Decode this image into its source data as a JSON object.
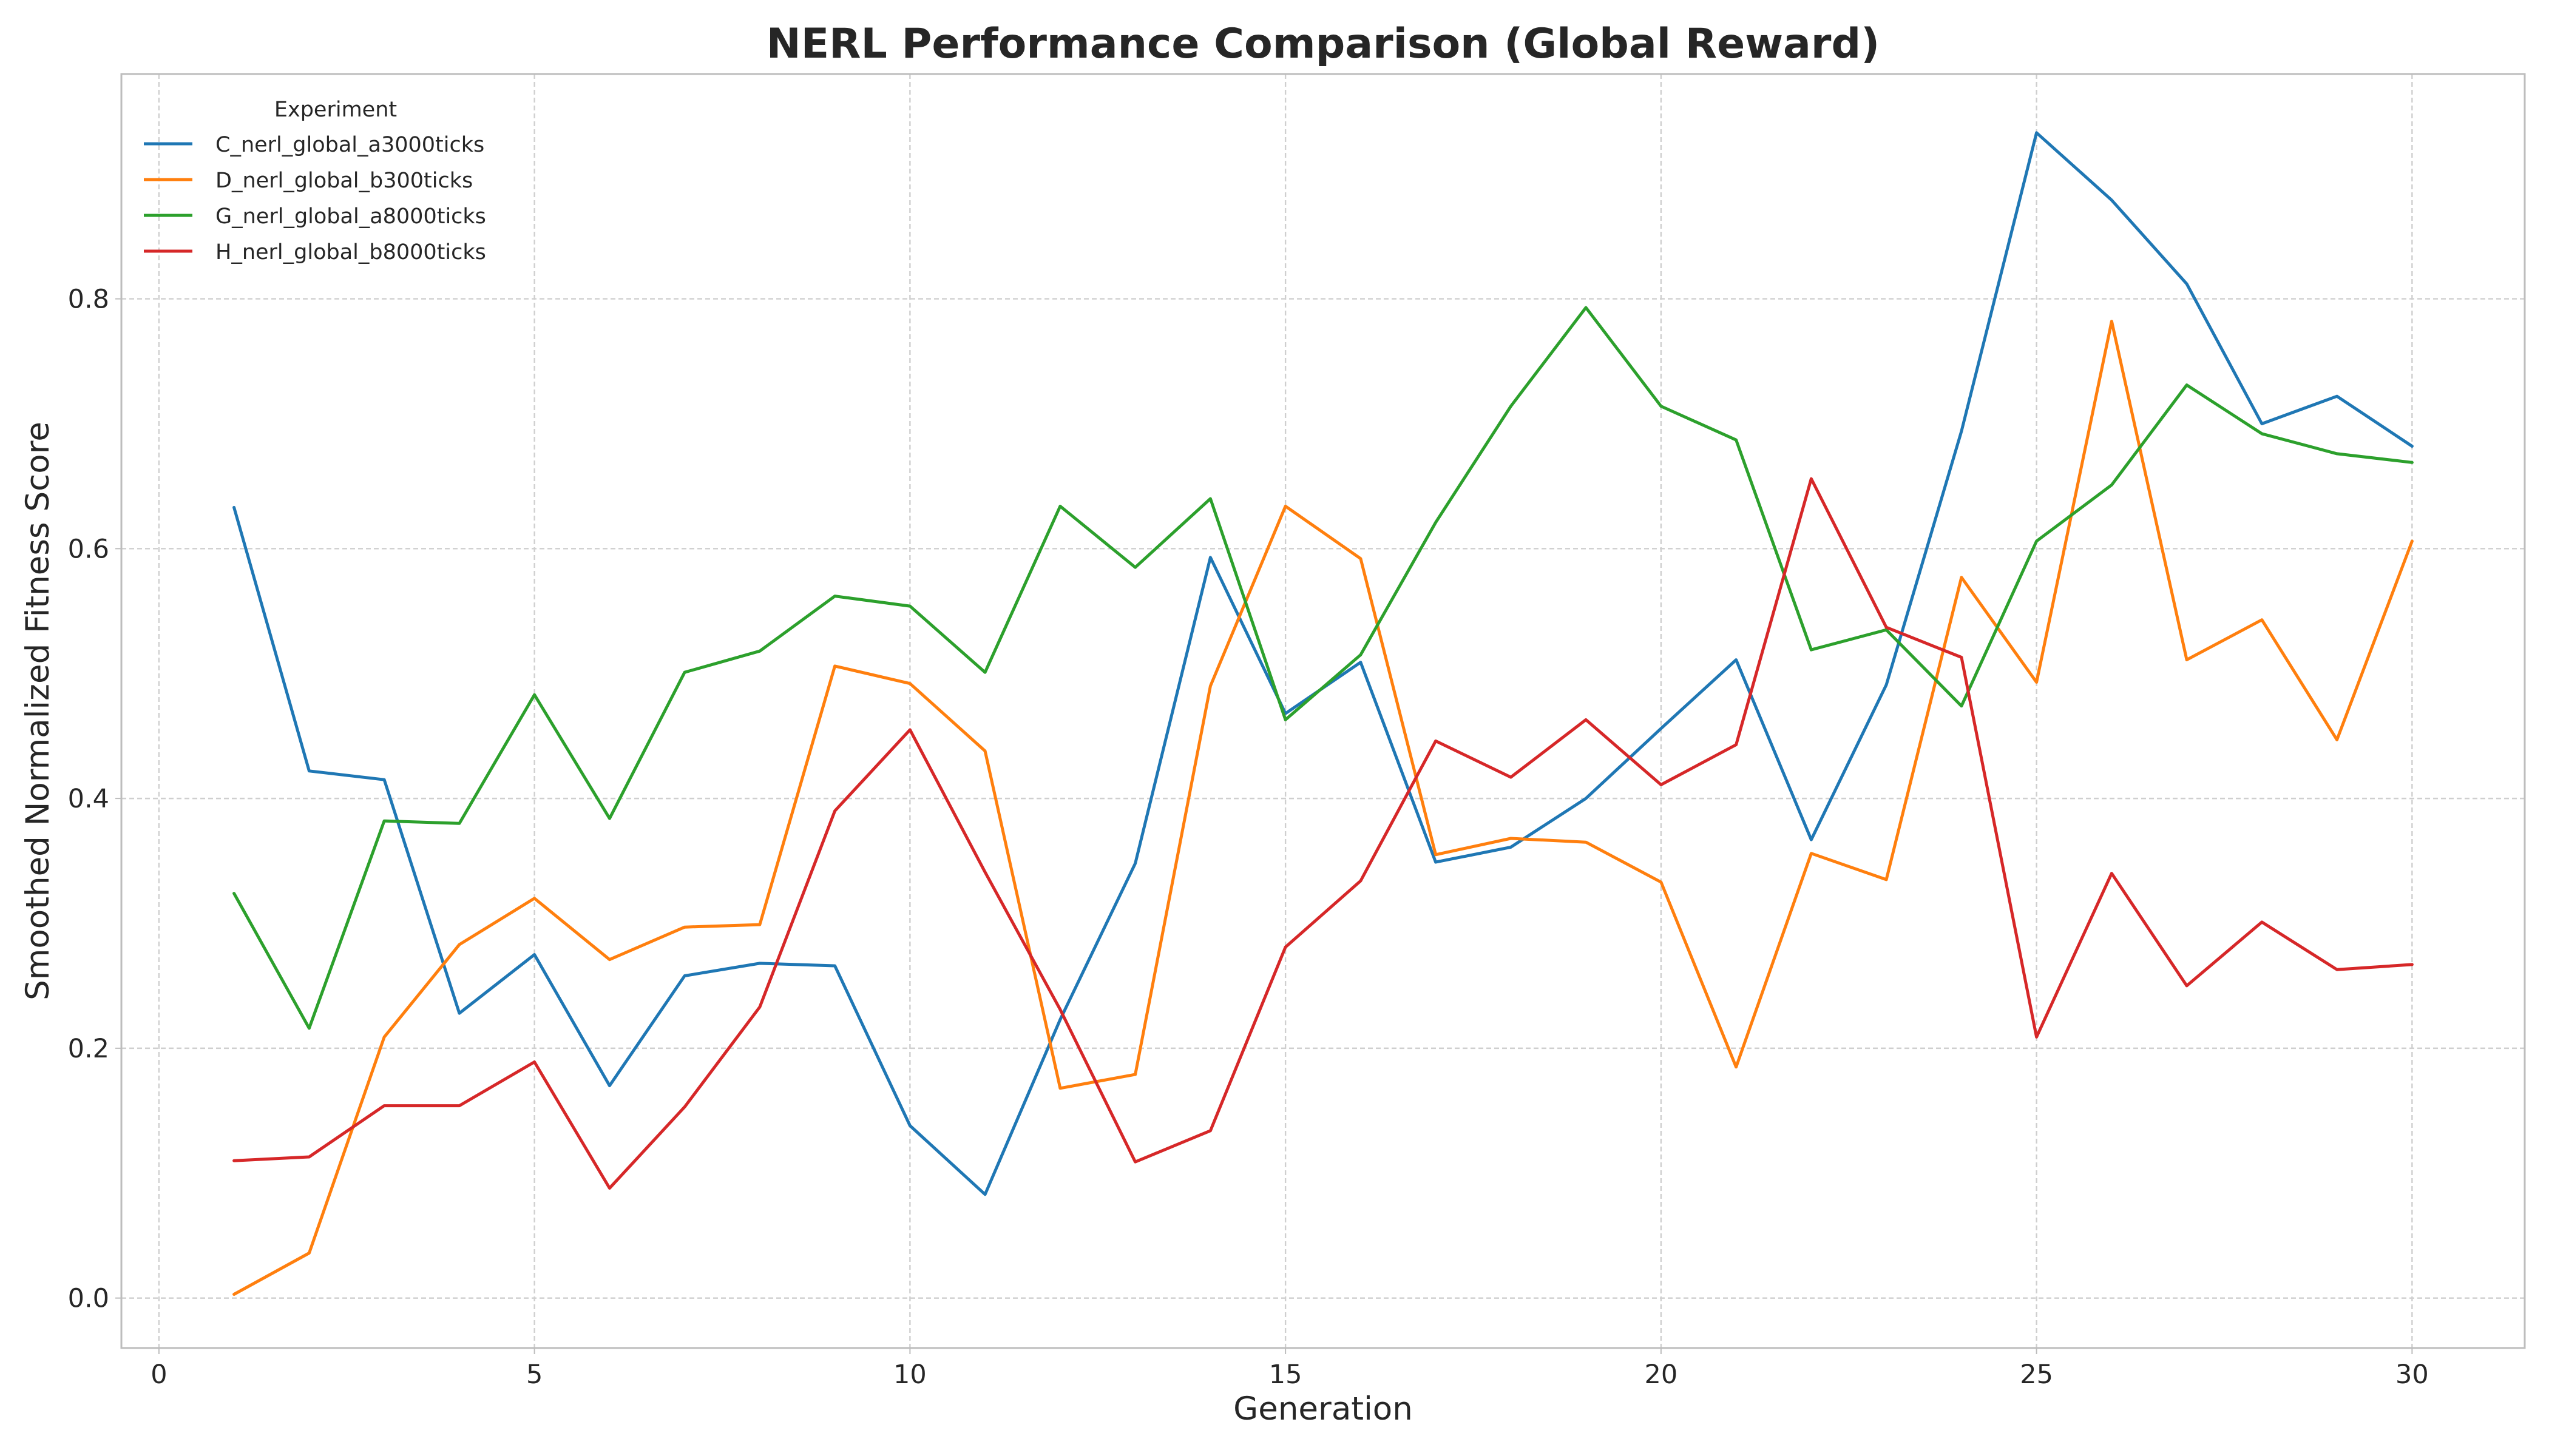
{
  "chart_data": {
    "type": "line",
    "title": "NERL Performance Comparison (Global Reward)",
    "xlabel": "Generation",
    "ylabel": "Smoothed Normalized Fitness Score",
    "xlim": [
      -0.5,
      31.5
    ],
    "ylim": [
      -0.04,
      0.98
    ],
    "xticks": [
      0,
      5,
      10,
      15,
      20,
      25,
      30
    ],
    "xtick_labels": [
      "0",
      "5",
      "10",
      "15",
      "20",
      "25",
      "30"
    ],
    "yticks": [
      0.0,
      0.2,
      0.4,
      0.6,
      0.8
    ],
    "ytick_labels": [
      "0.0",
      "0.2",
      "0.4",
      "0.6",
      "0.8"
    ],
    "grid": true,
    "legend": {
      "title": "Experiment",
      "placement": "top-left"
    },
    "x": [
      1,
      2,
      3,
      4,
      5,
      6,
      7,
      8,
      9,
      10,
      11,
      12,
      13,
      14,
      15,
      16,
      17,
      18,
      19,
      20,
      21,
      22,
      23,
      24,
      25,
      26,
      27,
      28,
      29,
      30
    ],
    "series": [
      {
        "name": "C_nerl_global_a3000ticks",
        "color": "#1f77b4",
        "values": [
          0.633,
          0.422,
          0.415,
          0.228,
          0.275,
          0.17,
          0.258,
          0.268,
          0.266,
          0.138,
          0.083,
          0.223,
          0.348,
          0.593,
          0.468,
          0.509,
          0.349,
          0.361,
          0.4,
          0.456,
          0.511,
          0.367,
          0.491,
          0.694,
          0.933,
          0.879,
          0.812,
          0.7,
          0.722,
          0.682
        ]
      },
      {
        "name": "D_nerl_global_b300ticks",
        "color": "#ff7f0e",
        "values": [
          0.003,
          0.036,
          0.209,
          0.283,
          0.32,
          0.271,
          0.297,
          0.299,
          0.506,
          0.492,
          0.438,
          0.168,
          0.179,
          0.49,
          0.634,
          0.592,
          0.355,
          0.368,
          0.365,
          0.333,
          0.185,
          0.356,
          0.335,
          0.577,
          0.493,
          0.782,
          0.511,
          0.543,
          0.447,
          0.606
        ]
      },
      {
        "name": "G_nerl_global_a8000ticks",
        "color": "#2ca02c",
        "values": [
          0.324,
          0.216,
          0.382,
          0.38,
          0.483,
          0.384,
          0.501,
          0.518,
          0.562,
          0.554,
          0.501,
          0.634,
          0.585,
          0.64,
          0.463,
          0.515,
          0.621,
          0.714,
          0.793,
          0.714,
          0.687,
          0.519,
          0.535,
          0.474,
          0.606,
          0.651,
          0.731,
          0.692,
          0.676,
          0.669
        ]
      },
      {
        "name": "H_nerl_global_b8000ticks",
        "color": "#d62728",
        "values": [
          0.11,
          0.113,
          0.154,
          0.154,
          0.189,
          0.088,
          0.153,
          0.233,
          0.39,
          0.455,
          0.341,
          0.231,
          0.109,
          0.134,
          0.281,
          0.334,
          0.446,
          0.417,
          0.463,
          0.411,
          0.443,
          0.656,
          0.537,
          0.513,
          0.209,
          0.34,
          0.25,
          0.301,
          0.263,
          0.267
        ]
      }
    ]
  }
}
